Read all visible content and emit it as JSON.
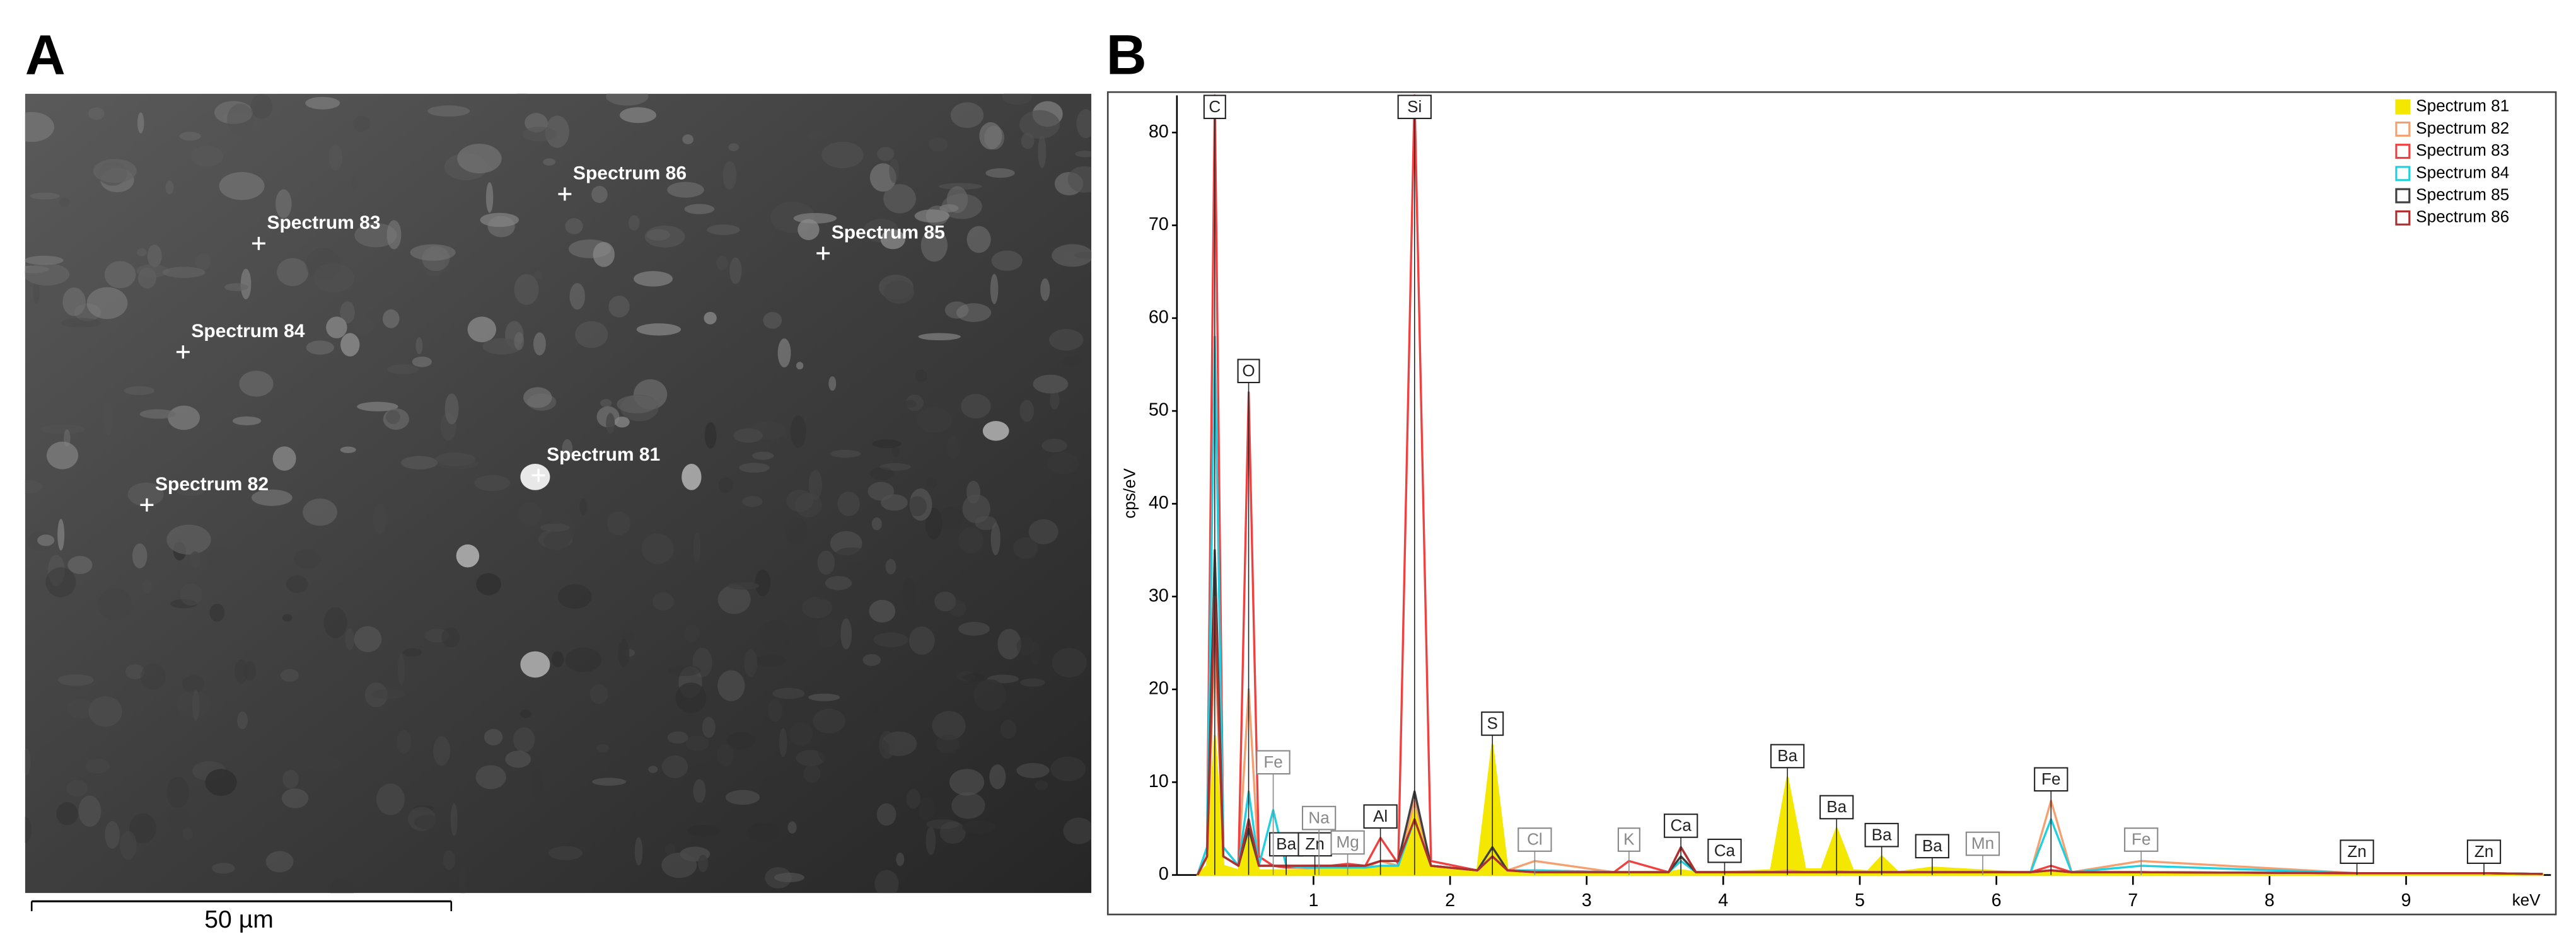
{
  "panels": {
    "a": "A",
    "b": "B"
  },
  "image": {
    "markers": [
      "Spectrum 86",
      "Spectrum 83",
      "Spectrum 85",
      "Spectrum 84",
      "Spectrum 81",
      "Spectrum 82"
    ],
    "scale_bar": "50 µm"
  },
  "chart_data": {
    "type": "line",
    "ylabel": "cps/eV",
    "xlabel": "keV",
    "xlim": [
      0,
      10
    ],
    "ylim": [
      0,
      84
    ],
    "xticks": [
      1,
      2,
      3,
      4,
      5,
      6,
      7,
      8,
      9
    ],
    "yticks": [
      0,
      10,
      20,
      30,
      40,
      50,
      60,
      70,
      80
    ],
    "legend": "upper right",
    "x": [
      0.15,
      0.22,
      0.277,
      0.34,
      0.45,
      0.525,
      0.6,
      0.705,
      0.8,
      0.95,
      1.04,
      1.12,
      1.25,
      1.38,
      1.49,
      1.62,
      1.74,
      1.86,
      2.2,
      2.31,
      2.42,
      2.62,
      3.2,
      3.31,
      3.6,
      3.69,
      3.8,
      4.0,
      4.35,
      4.47,
      4.6,
      4.72,
      4.83,
      4.95,
      5.06,
      5.16,
      5.28,
      5.53,
      6.25,
      6.4,
      6.55,
      7.06,
      8.64,
      9.57,
      10
    ],
    "series": [
      {
        "name": "Spectrum 81",
        "color": "#f5e800",
        "filled": true,
        "values": [
          0,
          1,
          15,
          1,
          0.5,
          5,
          0.5,
          0.5,
          0.5,
          0.5,
          0.6,
          0.6,
          0.6,
          0.6,
          0.8,
          1,
          7,
          1,
          0.5,
          14,
          0.5,
          0.4,
          0.3,
          0.3,
          0.3,
          0.5,
          0.3,
          0.3,
          0.5,
          10.5,
          0.6,
          0.6,
          5,
          0.5,
          0.4,
          2,
          0.3,
          0.8,
          0.2,
          0.5,
          0.2,
          0.2,
          0.1,
          0.1,
          0.1
        ]
      },
      {
        "name": "Spectrum 82",
        "color": "#f4a070",
        "values": [
          0,
          2,
          25,
          2,
          1,
          20,
          1,
          1,
          0.8,
          0.7,
          0.8,
          0.8,
          0.8,
          0.8,
          1.5,
          1,
          8,
          1,
          0.5,
          2,
          0.5,
          1.5,
          0.3,
          0.3,
          0.3,
          2,
          0.3,
          0.3,
          0.3,
          0.5,
          0.3,
          0.3,
          0.4,
          0.3,
          0.3,
          0.3,
          0.3,
          0.3,
          0.3,
          8,
          0.3,
          1.5,
          0.2,
          0.2,
          0.1
        ]
      },
      {
        "name": "Spectrum 83",
        "color": "#f04040",
        "values": [
          0,
          3,
          84,
          3,
          1,
          52,
          2,
          1,
          0.8,
          1,
          1,
          1,
          1.2,
          1,
          4,
          1.2,
          84,
          1.5,
          0.5,
          2,
          0.5,
          0.5,
          0.3,
          1.5,
          0.3,
          3,
          0.3,
          0.3,
          0.3,
          0.3,
          0.3,
          0.3,
          0.3,
          0.3,
          0.3,
          0.3,
          0.3,
          0.3,
          0.3,
          1,
          0.3,
          0.3,
          0.2,
          0.2,
          0.1
        ]
      },
      {
        "name": "Spectrum 84",
        "color": "#20d0e0",
        "values": [
          0,
          3,
          58,
          3,
          1,
          9,
          1,
          7,
          1,
          0.8,
          0.8,
          0.8,
          0.8,
          0.8,
          1,
          1,
          6,
          1,
          0.5,
          2,
          0.5,
          0.5,
          0.3,
          0.3,
          0.3,
          1.5,
          0.3,
          0.3,
          0.3,
          0.3,
          0.3,
          0.3,
          0.3,
          0.3,
          0.3,
          0.3,
          0.3,
          0.3,
          0.3,
          6,
          0.3,
          1,
          0.2,
          0.2,
          0.1
        ]
      },
      {
        "name": "Spectrum 85",
        "color": "#404040",
        "values": [
          0,
          2,
          35,
          2,
          1,
          5,
          1,
          1,
          1,
          1,
          1,
          1,
          1,
          1,
          1.5,
          1.5,
          9,
          1,
          0.5,
          3,
          0.5,
          0.3,
          0.3,
          0.3,
          0.3,
          2,
          0.3,
          0.3,
          0.3,
          0.3,
          0.3,
          0.3,
          0.3,
          0.3,
          0.3,
          0.3,
          0.3,
          0.3,
          0.3,
          0.5,
          0.3,
          0.3,
          0.2,
          0.2,
          0.1
        ]
      },
      {
        "name": "Spectrum 86",
        "color": "#b03030",
        "values": [
          0,
          2,
          30,
          2,
          1,
          6,
          1,
          1,
          1,
          1,
          1,
          1,
          1,
          1,
          1.5,
          1.5,
          6,
          1,
          0.5,
          2,
          0.5,
          0.3,
          0.3,
          0.3,
          0.3,
          3,
          0.3,
          0.3,
          0.3,
          0.3,
          0.3,
          0.3,
          0.3,
          0.3,
          0.3,
          0.3,
          0.3,
          0.3,
          0.3,
          0.5,
          0.3,
          0.3,
          0.2,
          0.2,
          0.1
        ]
      }
    ],
    "peak_labels": [
      {
        "text": "C",
        "x": 0.277
      },
      {
        "text": "O",
        "x": 0.525
      },
      {
        "text": "Ba",
        "x": 0.8
      },
      {
        "text": "Zn",
        "x": 1.01
      },
      {
        "text": "Al",
        "x": 1.49
      },
      {
        "text": "Si",
        "x": 1.74
      },
      {
        "text": "S",
        "x": 2.31
      },
      {
        "text": "Ca",
        "x": 3.69
      },
      {
        "text": "Ca",
        "x": 4.01
      },
      {
        "text": "Ba",
        "x": 4.47
      },
      {
        "text": "Ba",
        "x": 4.83
      },
      {
        "text": "Ba",
        "x": 5.16
      },
      {
        "text": "Ba",
        "x": 5.53
      },
      {
        "text": "Fe",
        "x": 6.4
      },
      {
        "text": "Zn",
        "x": 8.64
      },
      {
        "text": "Zn",
        "x": 9.57
      }
    ],
    "minor_peak_labels": [
      {
        "text": "Fe",
        "x": 0.705
      },
      {
        "text": "Na",
        "x": 1.04
      },
      {
        "text": "Mg",
        "x": 1.25
      },
      {
        "text": "Cl",
        "x": 2.62
      },
      {
        "text": "K",
        "x": 3.31
      },
      {
        "text": "Mn",
        "x": 5.9
      },
      {
        "text": "Fe",
        "x": 7.06
      }
    ]
  }
}
